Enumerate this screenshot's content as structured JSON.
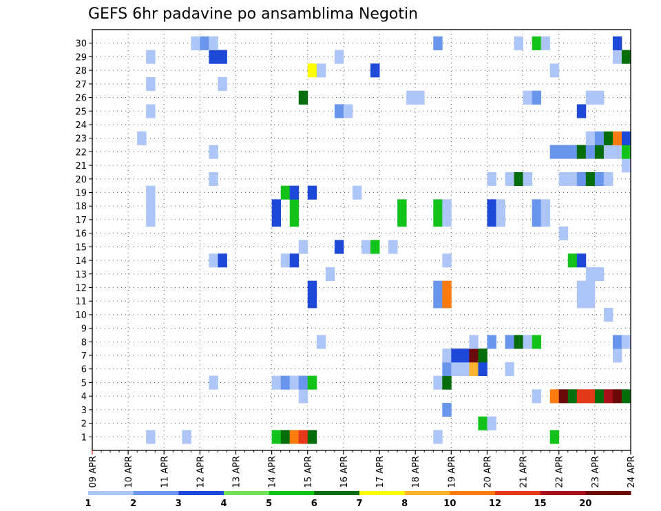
{
  "chart_data": {
    "type": "heatmap",
    "title": "GEFS 6hr padavine po ansamblima Negotin",
    "xlabel": "",
    "ylabel": "",
    "x_tick_labels": [
      "09 APR",
      "10 APR",
      "11 APR",
      "12 APR",
      "13 APR",
      "14 APR",
      "15 APR",
      "16 APR",
      "17 APR",
      "18 APR",
      "19 APR",
      "20 APR",
      "21 APR",
      "22 APR",
      "23 APR",
      "24 APR"
    ],
    "x_time_steps_per_day": 4,
    "x_steps_total": 60,
    "y_members": [
      "1",
      "2",
      "3",
      "4",
      "5",
      "6",
      "7",
      "8",
      "9",
      "10",
      "11",
      "12",
      "13",
      "14",
      "15",
      "16",
      "17",
      "18",
      "19",
      "20",
      "21",
      "22",
      "23",
      "24",
      "25",
      "26",
      "27",
      "28",
      "29",
      "30"
    ],
    "grid": true,
    "color_scale": {
      "labels": [
        "1",
        "2",
        "3",
        "4",
        "5",
        "6",
        "7",
        "8",
        "10",
        "12",
        "15",
        "20"
      ],
      "colors": [
        "#adc6f7",
        "#6996ec",
        "#1e48d8",
        "#72e15e",
        "#12c41a",
        "#056d0c",
        "#ffff00",
        "#ffb430",
        "#ff7a0f",
        "#e4381a",
        "#a8101a",
        "#6c0a0a"
      ]
    },
    "cells": [
      {
        "m": 1,
        "t": 6,
        "v": 1
      },
      {
        "m": 1,
        "t": 10,
        "v": 1
      },
      {
        "m": 1,
        "t": 20,
        "v": 5
      },
      {
        "m": 1,
        "t": 21,
        "v": 6
      },
      {
        "m": 1,
        "t": 22,
        "v": 10
      },
      {
        "m": 1,
        "t": 23,
        "v": 12
      },
      {
        "m": 1,
        "t": 24,
        "v": 6
      },
      {
        "m": 1,
        "t": 38,
        "v": 1
      },
      {
        "m": 1,
        "t": 51,
        "v": 5
      },
      {
        "m": 2,
        "t": 43,
        "v": 5
      },
      {
        "m": 2,
        "t": 44,
        "v": 1
      },
      {
        "m": 3,
        "t": 39,
        "v": 2
      },
      {
        "m": 4,
        "t": 23,
        "v": 1
      },
      {
        "m": 4,
        "t": 49,
        "v": 1
      },
      {
        "m": 4,
        "t": 51,
        "v": 10
      },
      {
        "m": 4,
        "t": 52,
        "v": 20
      },
      {
        "m": 4,
        "t": 53,
        "v": 6
      },
      {
        "m": 4,
        "t": 54,
        "v": 12
      },
      {
        "m": 4,
        "t": 55,
        "v": 12
      },
      {
        "m": 4,
        "t": 56,
        "v": 6
      },
      {
        "m": 4,
        "t": 57,
        "v": 15
      },
      {
        "m": 4,
        "t": 58,
        "v": 20
      },
      {
        "m": 4,
        "t": 59,
        "v": 6
      },
      {
        "m": 5,
        "t": 13,
        "v": 1
      },
      {
        "m": 5,
        "t": 20,
        "v": 1
      },
      {
        "m": 5,
        "t": 21,
        "v": 2
      },
      {
        "m": 5,
        "t": 22,
        "v": 1
      },
      {
        "m": 5,
        "t": 23,
        "v": 2
      },
      {
        "m": 5,
        "t": 24,
        "v": 5
      },
      {
        "m": 5,
        "t": 38,
        "v": 1
      },
      {
        "m": 5,
        "t": 39,
        "v": 6
      },
      {
        "m": 6,
        "t": 39,
        "v": 2
      },
      {
        "m": 6,
        "t": 40,
        "v": 1
      },
      {
        "m": 6,
        "t": 41,
        "v": 1
      },
      {
        "m": 6,
        "t": 42,
        "v": 8
      },
      {
        "m": 6,
        "t": 43,
        "v": 3
      },
      {
        "m": 6,
        "t": 46,
        "v": 1
      },
      {
        "m": 7,
        "t": 39,
        "v": 1
      },
      {
        "m": 7,
        "t": 40,
        "v": 3
      },
      {
        "m": 7,
        "t": 41,
        "v": 3
      },
      {
        "m": 7,
        "t": 42,
        "v": 20
      },
      {
        "m": 7,
        "t": 43,
        "v": 6
      },
      {
        "m": 7,
        "t": 58,
        "v": 1
      },
      {
        "m": 8,
        "t": 25,
        "v": 1
      },
      {
        "m": 8,
        "t": 42,
        "v": 1
      },
      {
        "m": 8,
        "t": 44,
        "v": 2
      },
      {
        "m": 8,
        "t": 46,
        "v": 2
      },
      {
        "m": 8,
        "t": 47,
        "v": 6
      },
      {
        "m": 8,
        "t": 48,
        "v": 1
      },
      {
        "m": 8,
        "t": 49,
        "v": 5
      },
      {
        "m": 8,
        "t": 58,
        "v": 2
      },
      {
        "m": 8,
        "t": 59,
        "v": 1
      },
      {
        "m": 10,
        "t": 57,
        "v": 1
      },
      {
        "m": 11,
        "t": 24,
        "v": 3
      },
      {
        "m": 11,
        "t": 38,
        "v": 2
      },
      {
        "m": 11,
        "t": 39,
        "v": 10
      },
      {
        "m": 11,
        "t": 54,
        "v": 1
      },
      {
        "m": 11,
        "t": 55,
        "v": 1
      },
      {
        "m": 12,
        "t": 24,
        "v": 3
      },
      {
        "m": 12,
        "t": 38,
        "v": 2
      },
      {
        "m": 12,
        "t": 39,
        "v": 10
      },
      {
        "m": 12,
        "t": 54,
        "v": 1
      },
      {
        "m": 12,
        "t": 55,
        "v": 1
      },
      {
        "m": 13,
        "t": 26,
        "v": 1
      },
      {
        "m": 13,
        "t": 55,
        "v": 1
      },
      {
        "m": 13,
        "t": 56,
        "v": 1
      },
      {
        "m": 14,
        "t": 13,
        "v": 1
      },
      {
        "m": 14,
        "t": 14,
        "v": 3
      },
      {
        "m": 14,
        "t": 21,
        "v": 1
      },
      {
        "m": 14,
        "t": 22,
        "v": 3
      },
      {
        "m": 14,
        "t": 39,
        "v": 1
      },
      {
        "m": 14,
        "t": 53,
        "v": 5
      },
      {
        "m": 14,
        "t": 54,
        "v": 3
      },
      {
        "m": 15,
        "t": 23,
        "v": 1
      },
      {
        "m": 15,
        "t": 27,
        "v": 3
      },
      {
        "m": 15,
        "t": 30,
        "v": 1
      },
      {
        "m": 15,
        "t": 31,
        "v": 5
      },
      {
        "m": 15,
        "t": 33,
        "v": 1
      },
      {
        "m": 16,
        "t": 52,
        "v": 1
      },
      {
        "m": 17,
        "t": 6,
        "v": 1
      },
      {
        "m": 17,
        "t": 20,
        "v": 3
      },
      {
        "m": 17,
        "t": 22,
        "v": 5
      },
      {
        "m": 17,
        "t": 34,
        "v": 5
      },
      {
        "m": 17,
        "t": 38,
        "v": 5
      },
      {
        "m": 17,
        "t": 39,
        "v": 1
      },
      {
        "m": 17,
        "t": 44,
        "v": 3
      },
      {
        "m": 17,
        "t": 45,
        "v": 1
      },
      {
        "m": 17,
        "t": 49,
        "v": 2
      },
      {
        "m": 17,
        "t": 50,
        "v": 1
      },
      {
        "m": 18,
        "t": 6,
        "v": 1
      },
      {
        "m": 18,
        "t": 20,
        "v": 3
      },
      {
        "m": 18,
        "t": 22,
        "v": 5
      },
      {
        "m": 18,
        "t": 34,
        "v": 5
      },
      {
        "m": 18,
        "t": 38,
        "v": 5
      },
      {
        "m": 18,
        "t": 39,
        "v": 1
      },
      {
        "m": 18,
        "t": 44,
        "v": 3
      },
      {
        "m": 18,
        "t": 45,
        "v": 1
      },
      {
        "m": 18,
        "t": 49,
        "v": 2
      },
      {
        "m": 18,
        "t": 50,
        "v": 1
      },
      {
        "m": 19,
        "t": 6,
        "v": 1
      },
      {
        "m": 19,
        "t": 21,
        "v": 5
      },
      {
        "m": 19,
        "t": 22,
        "v": 3
      },
      {
        "m": 19,
        "t": 24,
        "v": 3
      },
      {
        "m": 19,
        "t": 29,
        "v": 1
      },
      {
        "m": 20,
        "t": 13,
        "v": 1
      },
      {
        "m": 20,
        "t": 44,
        "v": 1
      },
      {
        "m": 20,
        "t": 46,
        "v": 1
      },
      {
        "m": 20,
        "t": 47,
        "v": 6
      },
      {
        "m": 20,
        "t": 48,
        "v": 1
      },
      {
        "m": 20,
        "t": 52,
        "v": 1
      },
      {
        "m": 20,
        "t": 53,
        "v": 1
      },
      {
        "m": 20,
        "t": 54,
        "v": 2
      },
      {
        "m": 20,
        "t": 55,
        "v": 6
      },
      {
        "m": 20,
        "t": 56,
        "v": 2
      },
      {
        "m": 20,
        "t": 57,
        "v": 1
      },
      {
        "m": 21,
        "t": 59,
        "v": 1
      },
      {
        "m": 22,
        "t": 13,
        "v": 1
      },
      {
        "m": 22,
        "t": 51,
        "v": 2
      },
      {
        "m": 22,
        "t": 52,
        "v": 2
      },
      {
        "m": 22,
        "t": 53,
        "v": 2
      },
      {
        "m": 22,
        "t": 54,
        "v": 6
      },
      {
        "m": 22,
        "t": 55,
        "v": 2
      },
      {
        "m": 22,
        "t": 56,
        "v": 6
      },
      {
        "m": 22,
        "t": 57,
        "v": 1
      },
      {
        "m": 22,
        "t": 58,
        "v": 1
      },
      {
        "m": 22,
        "t": 59,
        "v": 5
      },
      {
        "m": 23,
        "t": 5,
        "v": 1
      },
      {
        "m": 23,
        "t": 55,
        "v": 1
      },
      {
        "m": 23,
        "t": 56,
        "v": 2
      },
      {
        "m": 23,
        "t": 57,
        "v": 6
      },
      {
        "m": 23,
        "t": 58,
        "v": 10
      },
      {
        "m": 23,
        "t": 59,
        "v": 3
      },
      {
        "m": 25,
        "t": 6,
        "v": 1
      },
      {
        "m": 25,
        "t": 27,
        "v": 2
      },
      {
        "m": 25,
        "t": 28,
        "v": 1
      },
      {
        "m": 25,
        "t": 54,
        "v": 3
      },
      {
        "m": 26,
        "t": 23,
        "v": 6
      },
      {
        "m": 26,
        "t": 35,
        "v": 1
      },
      {
        "m": 26,
        "t": 36,
        "v": 1
      },
      {
        "m": 26,
        "t": 48,
        "v": 1
      },
      {
        "m": 26,
        "t": 49,
        "v": 2
      },
      {
        "m": 26,
        "t": 55,
        "v": 1
      },
      {
        "m": 26,
        "t": 56,
        "v": 1
      },
      {
        "m": 27,
        "t": 6,
        "v": 1
      },
      {
        "m": 27,
        "t": 14,
        "v": 1
      },
      {
        "m": 28,
        "t": 24,
        "v": 7
      },
      {
        "m": 28,
        "t": 25,
        "v": 1
      },
      {
        "m": 28,
        "t": 31,
        "v": 3
      },
      {
        "m": 28,
        "t": 51,
        "v": 1
      },
      {
        "m": 29,
        "t": 6,
        "v": 1
      },
      {
        "m": 29,
        "t": 13,
        "v": 3
      },
      {
        "m": 29,
        "t": 14,
        "v": 3
      },
      {
        "m": 29,
        "t": 27,
        "v": 1
      },
      {
        "m": 29,
        "t": 58,
        "v": 1
      },
      {
        "m": 29,
        "t": 59,
        "v": 6
      },
      {
        "m": 30,
        "t": 11,
        "v": 1
      },
      {
        "m": 30,
        "t": 12,
        "v": 2
      },
      {
        "m": 30,
        "t": 13,
        "v": 1
      },
      {
        "m": 30,
        "t": 38,
        "v": 2
      },
      {
        "m": 30,
        "t": 47,
        "v": 1
      },
      {
        "m": 30,
        "t": 49,
        "v": 5
      },
      {
        "m": 30,
        "t": 50,
        "v": 1
      },
      {
        "m": 30,
        "t": 58,
        "v": 3
      }
    ]
  }
}
